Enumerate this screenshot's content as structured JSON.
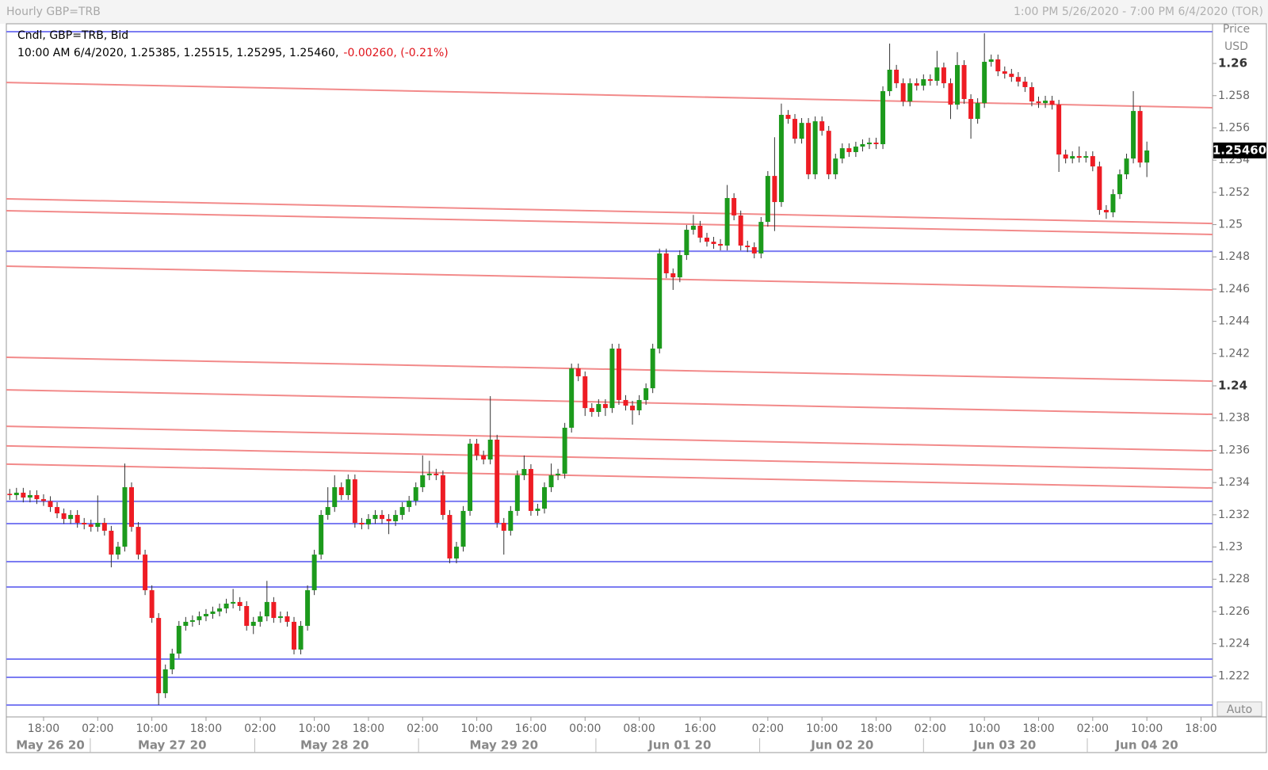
{
  "chart_data": {
    "type": "candlestick",
    "title": "Hourly GBP=TRB",
    "subtitle": "1:00 PM 5/26/2020 - 7:00 PM 6/4/2020 (TOR)",
    "series_label": "Cndl, GBP=TRB, Bid",
    "ohlc_text": "10:00 AM 6/4/2020, 1.25385, 1.25515, 1.25295, 1.25460,",
    "change_text": "-0.00260, (-0.21%)",
    "axis_title": "Price",
    "axis_unit": "USD",
    "scale_mode": "Auto",
    "up_color": "#1c9a1c",
    "down_color": "#ee1c24",
    "wick_color": "#333333",
    "open": [
      1.2333,
      1.23322,
      1.23337,
      1.23307,
      1.23322,
      1.23297,
      1.23285,
      1.23248,
      1.23209,
      1.23174,
      1.23199,
      1.2315,
      1.2314,
      1.23125,
      1.2315,
      1.23101,
      1.22953,
      1.23002,
      1.23371,
      1.23125,
      1.22953,
      1.22732,
      1.2256,
      1.22093,
      1.22241,
      1.22339,
      1.22511,
      1.22536,
      1.22546,
      1.2257,
      1.22585,
      1.226,
      1.22619,
      1.22649,
      1.22659,
      1.22634,
      1.22511,
      1.22536,
      1.2257,
      1.22659,
      1.2256,
      1.2257,
      1.22536,
      1.22364,
      1.22511,
      1.22732,
      1.22953,
      1.23199,
      1.23248,
      1.23371,
      1.23322,
      1.2342,
      1.2315,
      1.2314,
      1.23174,
      1.23199,
      1.23174,
      1.2316,
      1.23199,
      1.23248,
      1.23287,
      1.23371,
      1.23445,
      1.23455,
      1.23445,
      1.23199,
      1.22929,
      1.23002,
      1.23224,
      1.23641,
      1.23568,
      1.23543,
      1.23666,
      1.2315,
      1.23101,
      1.23224,
      1.23445,
      1.23484,
      1.23224,
      1.23238,
      1.23371,
      1.23445,
      1.23455,
      1.2374,
      1.24108,
      1.24059,
      1.23862,
      1.23838,
      1.23887,
      1.23862,
      1.24231,
      1.23912,
      1.23877,
      1.23848,
      1.23912,
      1.23985,
      1.24231,
      1.24821,
      1.24698,
      1.24673,
      1.24811,
      1.24968,
      1.24993,
      1.24919,
      1.24894,
      1.2488,
      1.2487,
      1.25165,
      1.25057,
      1.2487,
      1.2486,
      1.24821,
      1.25017,
      1.25302,
      1.2514,
      1.25681,
      1.25656,
      1.25533,
      1.25631,
      1.25312,
      1.25641,
      1.25582,
      1.25312,
      1.2541,
      1.25474,
      1.2545,
      1.25484,
      1.25499,
      1.25509,
      1.25499,
      1.25828,
      1.25961,
      1.25877,
      1.25764,
      1.25877,
      1.25862,
      1.25902,
      1.25892,
      1.25975,
      1.25877,
      1.25744,
      1.2599,
      1.25779,
      1.25656,
      1.25754,
      1.2601,
      1.26025,
      1.25951,
      1.25936,
      1.25916,
      1.25887,
      1.25853,
      1.25764,
      1.25754,
      1.25769,
      1.25744,
      1.25435,
      1.2541,
      1.25425,
      1.25415,
      1.25425,
      1.25361,
      1.25091,
      1.25076,
      1.25189,
      1.25312,
      1.2541,
      1.25705,
      1.25385
    ],
    "high": [
      1.2336,
      1.23367,
      1.23367,
      1.23352,
      1.23352,
      1.23327,
      1.23315,
      1.23278,
      1.23239,
      1.23229,
      1.23229,
      1.2318,
      1.2317,
      1.2332,
      1.2318,
      1.23131,
      1.23032,
      1.23518,
      1.23401,
      1.23155,
      1.22983,
      1.22762,
      1.2259,
      1.22271,
      1.22369,
      1.22541,
      1.22566,
      1.22576,
      1.226,
      1.22615,
      1.2263,
      1.22649,
      1.22679,
      1.2274,
      1.22689,
      1.22664,
      1.22566,
      1.226,
      1.2279,
      1.22689,
      1.226,
      1.226,
      1.22566,
      1.22541,
      1.22762,
      1.22983,
      1.23229,
      1.23371,
      1.23445,
      1.23401,
      1.2345,
      1.2345,
      1.2318,
      1.23204,
      1.23229,
      1.23229,
      1.23204,
      1.23229,
      1.23278,
      1.23317,
      1.23401,
      1.23568,
      1.23535,
      1.23485,
      1.23475,
      1.23229,
      1.23032,
      1.23254,
      1.23671,
      1.23671,
      1.23598,
      1.23936,
      1.23696,
      1.2318,
      1.23254,
      1.23475,
      1.23568,
      1.23514,
      1.23268,
      1.23401,
      1.23518,
      1.23485,
      1.2377,
      1.24138,
      1.24138,
      1.24089,
      1.23892,
      1.23917,
      1.23917,
      1.24261,
      1.24261,
      1.23942,
      1.23907,
      1.23942,
      1.24015,
      1.24261,
      1.24851,
      1.24851,
      1.24728,
      1.24841,
      1.24998,
      1.2506,
      1.25023,
      1.24949,
      1.24924,
      1.2491,
      1.25246,
      1.25195,
      1.25087,
      1.249,
      1.2489,
      1.25047,
      1.25332,
      1.25542,
      1.25751,
      1.25711,
      1.25686,
      1.25661,
      1.25661,
      1.25671,
      1.25671,
      1.25612,
      1.2544,
      1.25504,
      1.25504,
      1.25514,
      1.25529,
      1.25539,
      1.25539,
      1.25858,
      1.26123,
      1.25991,
      1.25907,
      1.25907,
      1.25907,
      1.25932,
      1.25932,
      1.26078,
      1.26005,
      1.25907,
      1.2607,
      1.2602,
      1.25809,
      1.25784,
      1.26187,
      1.26055,
      1.26055,
      1.25981,
      1.25966,
      1.25946,
      1.25917,
      1.25883,
      1.25794,
      1.25799,
      1.25799,
      1.25774,
      1.25465,
      1.25455,
      1.25485,
      1.25455,
      1.25455,
      1.25391,
      1.25121,
      1.25219,
      1.25342,
      1.2544,
      1.25828,
      1.25735,
      1.25515
    ],
    "low": [
      1.23292,
      1.23292,
      1.23277,
      1.23277,
      1.23267,
      1.23255,
      1.23218,
      1.23179,
      1.23144,
      1.23144,
      1.2312,
      1.2311,
      1.23095,
      1.23095,
      1.23071,
      1.22874,
      1.22923,
      1.22972,
      1.23095,
      1.22923,
      1.22702,
      1.2253,
      1.2202,
      1.22063,
      1.22211,
      1.22309,
      1.22481,
      1.22506,
      1.22516,
      1.2254,
      1.22555,
      1.2257,
      1.22589,
      1.22619,
      1.22604,
      1.22481,
      1.2246,
      1.22506,
      1.2254,
      1.2253,
      1.2253,
      1.22506,
      1.22334,
      1.22334,
      1.22481,
      1.22702,
      1.22923,
      1.23169,
      1.23218,
      1.23292,
      1.23292,
      1.2312,
      1.2311,
      1.2311,
      1.23144,
      1.23144,
      1.2308,
      1.2313,
      1.23169,
      1.23218,
      1.23257,
      1.23341,
      1.23415,
      1.23415,
      1.23169,
      1.22899,
      1.22899,
      1.22972,
      1.23194,
      1.23538,
      1.23513,
      1.23513,
      1.2312,
      1.22953,
      1.23071,
      1.23194,
      1.23415,
      1.23194,
      1.23194,
      1.23208,
      1.23341,
      1.23415,
      1.23425,
      1.2371,
      1.24029,
      1.23813,
      1.23808,
      1.23808,
      1.23813,
      1.23832,
      1.23882,
      1.23847,
      1.23759,
      1.23818,
      1.23882,
      1.23955,
      1.24201,
      1.24668,
      1.24595,
      1.24643,
      1.24781,
      1.24938,
      1.24889,
      1.24864,
      1.2485,
      1.2484,
      1.2484,
      1.25027,
      1.2484,
      1.2483,
      1.24791,
      1.24791,
      1.24987,
      1.2496,
      1.2511,
      1.25626,
      1.25503,
      1.25503,
      1.25282,
      1.25282,
      1.25552,
      1.25282,
      1.25282,
      1.2538,
      1.2542,
      1.2542,
      1.25454,
      1.25469,
      1.25469,
      1.25469,
      1.25798,
      1.25847,
      1.25734,
      1.25734,
      1.25832,
      1.25832,
      1.25862,
      1.25862,
      1.25847,
      1.25655,
      1.25714,
      1.25749,
      1.25533,
      1.25626,
      1.25724,
      1.2598,
      1.25921,
      1.25906,
      1.25886,
      1.25857,
      1.25823,
      1.25734,
      1.25724,
      1.25724,
      1.25714,
      1.25327,
      1.2538,
      1.2538,
      1.25385,
      1.25385,
      1.25331,
      1.25061,
      1.25036,
      1.25046,
      1.25159,
      1.25282,
      1.2538,
      1.25355,
      1.25295
    ],
    "close": [
      1.23322,
      1.23337,
      1.23307,
      1.23322,
      1.23297,
      1.23285,
      1.23248,
      1.23209,
      1.23174,
      1.23199,
      1.2315,
      1.2314,
      1.23125,
      1.2315,
      1.23101,
      1.22953,
      1.23002,
      1.23371,
      1.23125,
      1.22953,
      1.22732,
      1.2256,
      1.22093,
      1.22241,
      1.22339,
      1.22511,
      1.22536,
      1.22546,
      1.2257,
      1.22585,
      1.226,
      1.22619,
      1.22649,
      1.22659,
      1.22634,
      1.22511,
      1.22536,
      1.2257,
      1.22659,
      1.2256,
      1.2257,
      1.22536,
      1.22364,
      1.22511,
      1.22732,
      1.22953,
      1.23199,
      1.23248,
      1.23371,
      1.23322,
      1.2342,
      1.2315,
      1.2314,
      1.23174,
      1.23199,
      1.23174,
      1.2316,
      1.23199,
      1.23248,
      1.23287,
      1.23371,
      1.23445,
      1.23455,
      1.23445,
      1.23199,
      1.22929,
      1.23002,
      1.23224,
      1.23641,
      1.23568,
      1.23543,
      1.23666,
      1.2315,
      1.23101,
      1.23224,
      1.23445,
      1.23484,
      1.23224,
      1.23238,
      1.23371,
      1.23445,
      1.23455,
      1.2374,
      1.24108,
      1.24059,
      1.23862,
      1.23838,
      1.23887,
      1.23862,
      1.24231,
      1.23912,
      1.23877,
      1.23848,
      1.23912,
      1.23985,
      1.24231,
      1.24821,
      1.24698,
      1.24673,
      1.24811,
      1.24968,
      1.24993,
      1.24919,
      1.24894,
      1.2488,
      1.2487,
      1.25165,
      1.25057,
      1.2487,
      1.2486,
      1.24821,
      1.25017,
      1.25302,
      1.2514,
      1.25681,
      1.25656,
      1.25533,
      1.25631,
      1.25312,
      1.25641,
      1.25582,
      1.25312,
      1.2541,
      1.25474,
      1.2545,
      1.25484,
      1.25499,
      1.25509,
      1.25499,
      1.25828,
      1.25961,
      1.25877,
      1.25764,
      1.25877,
      1.25862,
      1.25902,
      1.25892,
      1.25975,
      1.25877,
      1.25744,
      1.2599,
      1.25779,
      1.25656,
      1.25754,
      1.2601,
      1.26025,
      1.25951,
      1.25936,
      1.25916,
      1.25887,
      1.25853,
      1.25764,
      1.25754,
      1.25769,
      1.25744,
      1.25435,
      1.2541,
      1.25425,
      1.25415,
      1.25425,
      1.25361,
      1.25091,
      1.25076,
      1.25189,
      1.25312,
      1.2541,
      1.25705,
      1.25385,
      1.2546
    ],
    "last_price": {
      "value": 1.2546,
      "label": "1.25460"
    },
    "horizontal_lines": {
      "color": "#7b7cf2",
      "values": [
        1.26197,
        1.24835,
        1.23283,
        1.23145,
        1.22909,
        1.22752,
        1.22305,
        1.22192,
        1.2202
      ]
    },
    "trend_lines": {
      "color": "#f28a8a",
      "lines": [
        [
          1.25882,
          1.25725
        ],
        [
          1.2516,
          1.25007
        ],
        [
          1.25086,
          1.24939
        ],
        [
          1.24742,
          1.24595
        ],
        [
          1.24177,
          1.24029
        ],
        [
          1.23975,
          1.23823
        ],
        [
          1.23749,
          1.23597
        ],
        [
          1.23627,
          1.23479
        ],
        [
          1.23514,
          1.23366
        ]
      ]
    },
    "xlim": [
      -0.5,
      177.7
    ],
    "xticks": [
      {
        "value": 5,
        "label": "18:00"
      },
      {
        "value": 13,
        "label": "02:00"
      },
      {
        "value": 21,
        "label": "10:00"
      },
      {
        "value": 29,
        "label": "18:00"
      },
      {
        "value": 37,
        "label": "02:00"
      },
      {
        "value": 45,
        "label": "10:00"
      },
      {
        "value": 53,
        "label": "18:00"
      },
      {
        "value": 61,
        "label": "02:00"
      },
      {
        "value": 69,
        "label": "10:00"
      },
      {
        "value": 77,
        "label": "16:00"
      },
      {
        "value": 85,
        "label": "00:00"
      },
      {
        "value": 93,
        "label": "08:00"
      },
      {
        "value": 102,
        "label": "16:00"
      },
      {
        "value": 112,
        "label": "02:00"
      },
      {
        "value": 120,
        "label": "10:00"
      },
      {
        "value": 128,
        "label": "18:00"
      },
      {
        "value": 136,
        "label": "02:00"
      },
      {
        "value": 144,
        "label": "10:00"
      },
      {
        "value": 152,
        "label": "18:00"
      },
      {
        "value": 160,
        "label": "02:00"
      },
      {
        "value": 168,
        "label": "10:00"
      },
      {
        "value": 176,
        "label": "18:00"
      }
    ],
    "date_ticks": [
      {
        "value": 6,
        "label": "May 26 20"
      },
      {
        "value": 24,
        "label": "May 27 20"
      },
      {
        "value": 48,
        "label": "May 28 20"
      },
      {
        "value": 73,
        "label": "May 29 20"
      },
      {
        "value": 99,
        "label": "Jun 01 20"
      },
      {
        "value": 123,
        "label": "Jun 02 20"
      },
      {
        "value": 147,
        "label": "Jun 03 20"
      },
      {
        "value": 168,
        "label": "Jun 04 20"
      }
    ],
    "ylim": [
      1.21946,
      1.26246
    ],
    "yticks": [
      1.222,
      1.224,
      1.226,
      1.228,
      1.23,
      1.232,
      1.234,
      1.236,
      1.238,
      1.24,
      1.242,
      1.244,
      1.246,
      1.248,
      1.25,
      1.252,
      1.254,
      1.256,
      1.258,
      1.26
    ]
  }
}
